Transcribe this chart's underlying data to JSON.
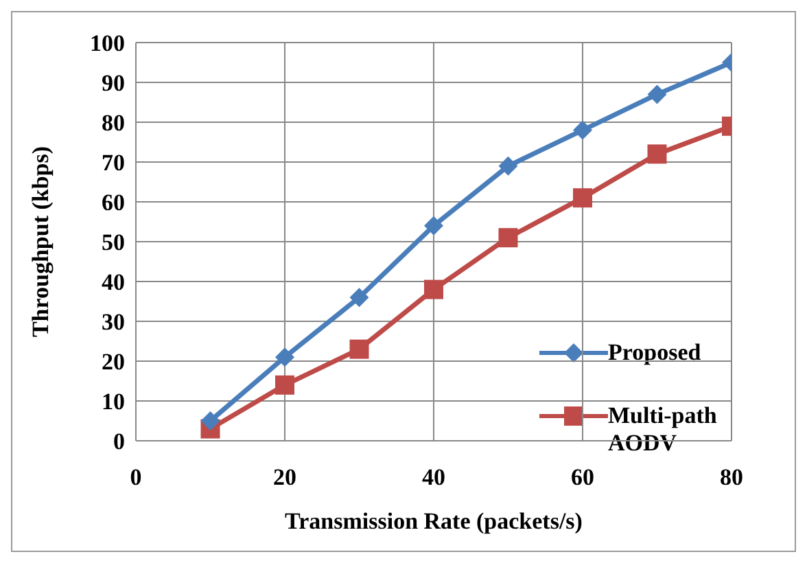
{
  "chart_data": {
    "type": "line",
    "xlabel": "Transmission Rate (packets/s)",
    "ylabel": "Throughput (kbps)",
    "x": [
      10,
      20,
      30,
      40,
      50,
      60,
      70,
      80
    ],
    "series": [
      {
        "name": "Proposed",
        "color": "#4a7ebb",
        "marker": "diamond",
        "values": [
          5,
          21,
          36,
          54,
          69,
          78,
          87,
          95
        ]
      },
      {
        "name": "Multi-path AODV",
        "color": "#be4b48",
        "marker": "square",
        "values": [
          3,
          14,
          23,
          38,
          51,
          61,
          72,
          79
        ]
      }
    ],
    "xlim": [
      0,
      80
    ],
    "xticks": [
      0,
      20,
      40,
      60,
      80
    ],
    "ylim": [
      0,
      100
    ],
    "yticks": [
      0,
      10,
      20,
      30,
      40,
      50,
      60,
      70,
      80,
      90,
      100
    ],
    "grid": true,
    "legend": "bottom right"
  }
}
